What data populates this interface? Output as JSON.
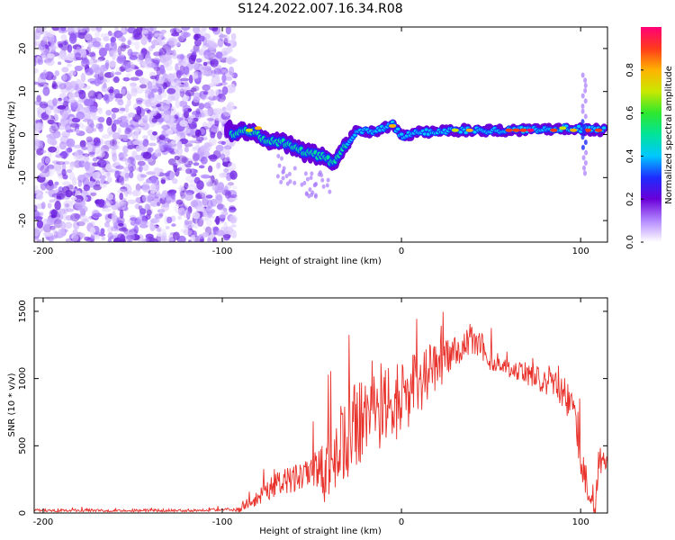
{
  "title": "S124.2022.007.16.34.R08",
  "chart_data": [
    {
      "type": "heatmap",
      "xlabel": "Height of straight line (km)",
      "ylabel": "Frequency (Hz)",
      "xlim": [
        -205,
        115
      ],
      "ylim": [
        -25,
        25
      ],
      "xticks": [
        -200,
        -100,
        0,
        100
      ],
      "yticks": [
        20,
        10,
        0,
        -10,
        -20
      ],
      "colorbar": {
        "label": "Normalized spectral amplitude",
        "range": [
          0,
          1
        ],
        "ticks": [
          "0.0",
          "0.2",
          "0.4",
          "0.6",
          "0.8"
        ],
        "colors": [
          "#ffffff",
          "#b388ff",
          "#6a00d8",
          "#1e2bff",
          "#00c8ff",
          "#00e39a",
          "#2ee82e",
          "#c8e800",
          "#ffb300",
          "#ff3a1a",
          "#ff0078"
        ]
      },
      "features": [
        {
          "name": "noise",
          "x_range": [
            -205,
            -93
          ],
          "y_range": [
            -25,
            25
          ],
          "amplitude": 0.15
        },
        {
          "name": "signal_track",
          "points": [
            [
              -95,
              0
            ],
            [
              -85,
              1
            ],
            [
              -75,
              -1.5
            ],
            [
              -65,
              -2
            ],
            [
              -55,
              -4
            ],
            [
              -45,
              -5
            ],
            [
              -38,
              -6.5
            ],
            [
              -32,
              -3
            ],
            [
              -25,
              1
            ],
            [
              -15,
              0.5
            ],
            [
              -5,
              2.5
            ],
            [
              0,
              -0.5
            ],
            [
              10,
              0.5
            ],
            [
              30,
              1
            ],
            [
              60,
              1
            ],
            [
              90,
              1.5
            ],
            [
              112,
              1
            ]
          ]
        }
      ]
    },
    {
      "type": "line",
      "xlabel": "Height of straight line (km)",
      "ylabel": "SNR (10 * v/v)",
      "xlim": [
        -205,
        115
      ],
      "ylim": [
        0,
        1600
      ],
      "xticks": [
        -200,
        -100,
        0,
        100
      ],
      "yticks": [
        0,
        500,
        1000,
        1500
      ],
      "color": "#e8322b",
      "envelope": [
        [
          -205,
          20
        ],
        [
          -120,
          20
        ],
        [
          -90,
          30
        ],
        [
          -80,
          130
        ],
        [
          -70,
          220
        ],
        [
          -60,
          260
        ],
        [
          -50,
          300
        ],
        [
          -42,
          320
        ],
        [
          -36,
          500
        ],
        [
          -30,
          640
        ],
        [
          -20,
          700
        ],
        [
          -10,
          800
        ],
        [
          0,
          880
        ],
        [
          10,
          1000
        ],
        [
          20,
          1120
        ],
        [
          30,
          1220
        ],
        [
          40,
          1300
        ],
        [
          45,
          1250
        ],
        [
          50,
          1150
        ],
        [
          60,
          1080
        ],
        [
          80,
          1000
        ],
        [
          90,
          920
        ],
        [
          95,
          800
        ],
        [
          98,
          650
        ],
        [
          100,
          450
        ],
        [
          103,
          300
        ],
        [
          106,
          200
        ],
        [
          108,
          120
        ],
        [
          110,
          400
        ],
        [
          115,
          380
        ]
      ],
      "spread": [
        [
          -205,
          15
        ],
        [
          -95,
          15
        ],
        [
          -80,
          90
        ],
        [
          -50,
          200
        ],
        [
          -40,
          400
        ],
        [
          -30,
          500
        ],
        [
          0,
          400
        ],
        [
          30,
          200
        ],
        [
          60,
          90
        ],
        [
          95,
          200
        ],
        [
          105,
          300
        ],
        [
          115,
          50
        ]
      ]
    }
  ]
}
